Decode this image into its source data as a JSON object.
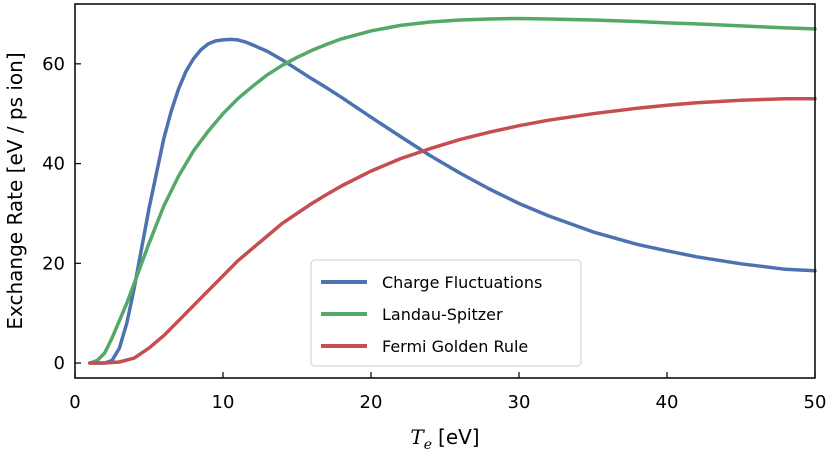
{
  "chart_data": {
    "type": "line",
    "title": "",
    "xlabel_symbol": "T",
    "xlabel_subscript": "e",
    "xlabel_unit": "[eV]",
    "ylabel": "Exchange Rate [eV / ps ion]",
    "xlim": [
      0,
      50
    ],
    "ylim": [
      -3,
      72
    ],
    "xticks": [
      0,
      10,
      20,
      30,
      40,
      50
    ],
    "yticks": [
      0,
      20,
      40,
      60
    ],
    "grid": false,
    "legend_position": "bottom-center",
    "series": [
      {
        "name": "Charge Fluctuations",
        "color": "#4c72b0",
        "x": [
          1,
          2,
          2.5,
          3,
          3.5,
          4,
          4.5,
          5,
          5.5,
          6,
          6.5,
          7,
          7.5,
          8,
          8.5,
          9,
          9.5,
          10,
          10.5,
          11,
          11.5,
          12,
          13,
          14,
          15,
          16,
          17,
          18,
          20,
          22,
          24,
          26,
          28,
          30,
          32,
          35,
          38,
          40,
          42,
          45,
          48,
          50
        ],
        "y": [
          0,
          0,
          0.5,
          3,
          8,
          15,
          23,
          31,
          38,
          45,
          50.5,
          55,
          58.5,
          61,
          62.8,
          64,
          64.6,
          64.8,
          64.9,
          64.8,
          64.4,
          63.8,
          62.5,
          60.8,
          58.9,
          57,
          55.2,
          53.3,
          49.3,
          45.4,
          41.6,
          38.1,
          34.9,
          32,
          29.5,
          26.3,
          23.8,
          22.5,
          21.3,
          19.9,
          18.8,
          18.5
        ]
      },
      {
        "name": "Landau-Spitzer",
        "color": "#55a868",
        "x": [
          1,
          1.5,
          2,
          2.5,
          3,
          3.5,
          4,
          5,
          6,
          7,
          8,
          9,
          10,
          11,
          12,
          13,
          14,
          15,
          16,
          17,
          18,
          20,
          22,
          24,
          26,
          28,
          30,
          32,
          35,
          38,
          40,
          42,
          45,
          48,
          50
        ],
        "y": [
          0,
          0.5,
          2,
          5,
          8.5,
          12,
          16,
          24,
          31.5,
          37.5,
          42.5,
          46.5,
          50,
          53,
          55.5,
          57.8,
          59.7,
          61.3,
          62.7,
          63.9,
          65,
          66.6,
          67.7,
          68.4,
          68.8,
          69,
          69.1,
          69,
          68.8,
          68.5,
          68.2,
          68,
          67.6,
          67.2,
          67
        ]
      },
      {
        "name": "Fermi Golden Rule",
        "color": "#c44e52",
        "x": [
          1,
          2,
          3,
          4,
          5,
          6,
          7,
          8,
          9,
          10,
          11,
          12,
          13,
          14,
          15,
          16,
          17,
          18,
          20,
          22,
          24,
          26,
          28,
          30,
          32,
          35,
          38,
          40,
          42,
          45,
          48,
          50
        ],
        "y": [
          0,
          0,
          0.2,
          1,
          3,
          5.5,
          8.5,
          11.5,
          14.5,
          17.5,
          20.5,
          23,
          25.5,
          28,
          30,
          32,
          33.8,
          35.5,
          38.5,
          41,
          43,
          44.8,
          46.3,
          47.6,
          48.7,
          50,
          51.1,
          51.7,
          52.2,
          52.7,
          53,
          53
        ]
      }
    ]
  }
}
